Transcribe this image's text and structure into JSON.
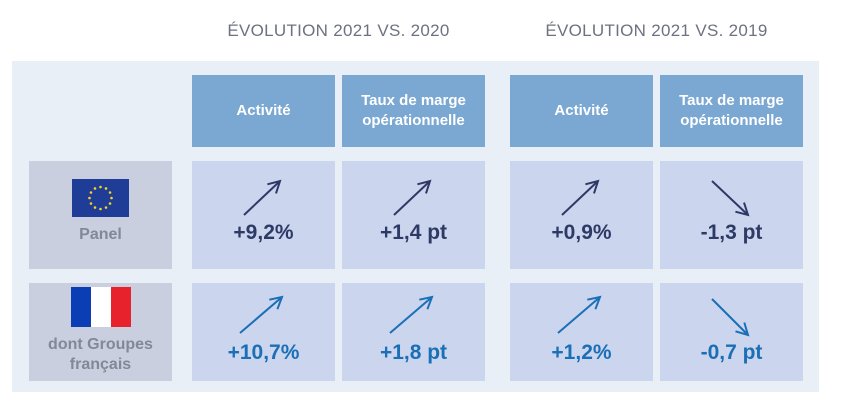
{
  "groups": [
    {
      "title": "ÉVOLUTION 2021 VS. 2020"
    },
    {
      "title": "ÉVOLUTION 2021 VS. 2019"
    }
  ],
  "columns": [
    {
      "header": [
        "Activité"
      ]
    },
    {
      "header": [
        "Taux de marge",
        "opérationnelle"
      ]
    },
    {
      "header": [
        "Activité"
      ]
    },
    {
      "header": [
        "Taux de marge",
        "opérationnelle"
      ]
    }
  ],
  "rows": [
    {
      "label": [
        "Panel"
      ],
      "flag": "eu-flag-icon",
      "values": [
        "+9,2%",
        "+1,4 pt",
        "+0,9%",
        "-1,3 pt"
      ],
      "trends": [
        "up",
        "up",
        "up",
        "down"
      ]
    },
    {
      "label": [
        "dont Groupes",
        "français"
      ],
      "flag": "fr-flag-icon",
      "values": [
        "+10,7%",
        "+1,8 pt",
        "+1,2%",
        "-0,7 pt"
      ],
      "trends": [
        "up",
        "up",
        "up",
        "down"
      ]
    }
  ],
  "colors": {
    "header_bg": "#7aa8d2",
    "row1_value": "#2e3a66",
    "row2_value": "#1a6fb6"
  }
}
